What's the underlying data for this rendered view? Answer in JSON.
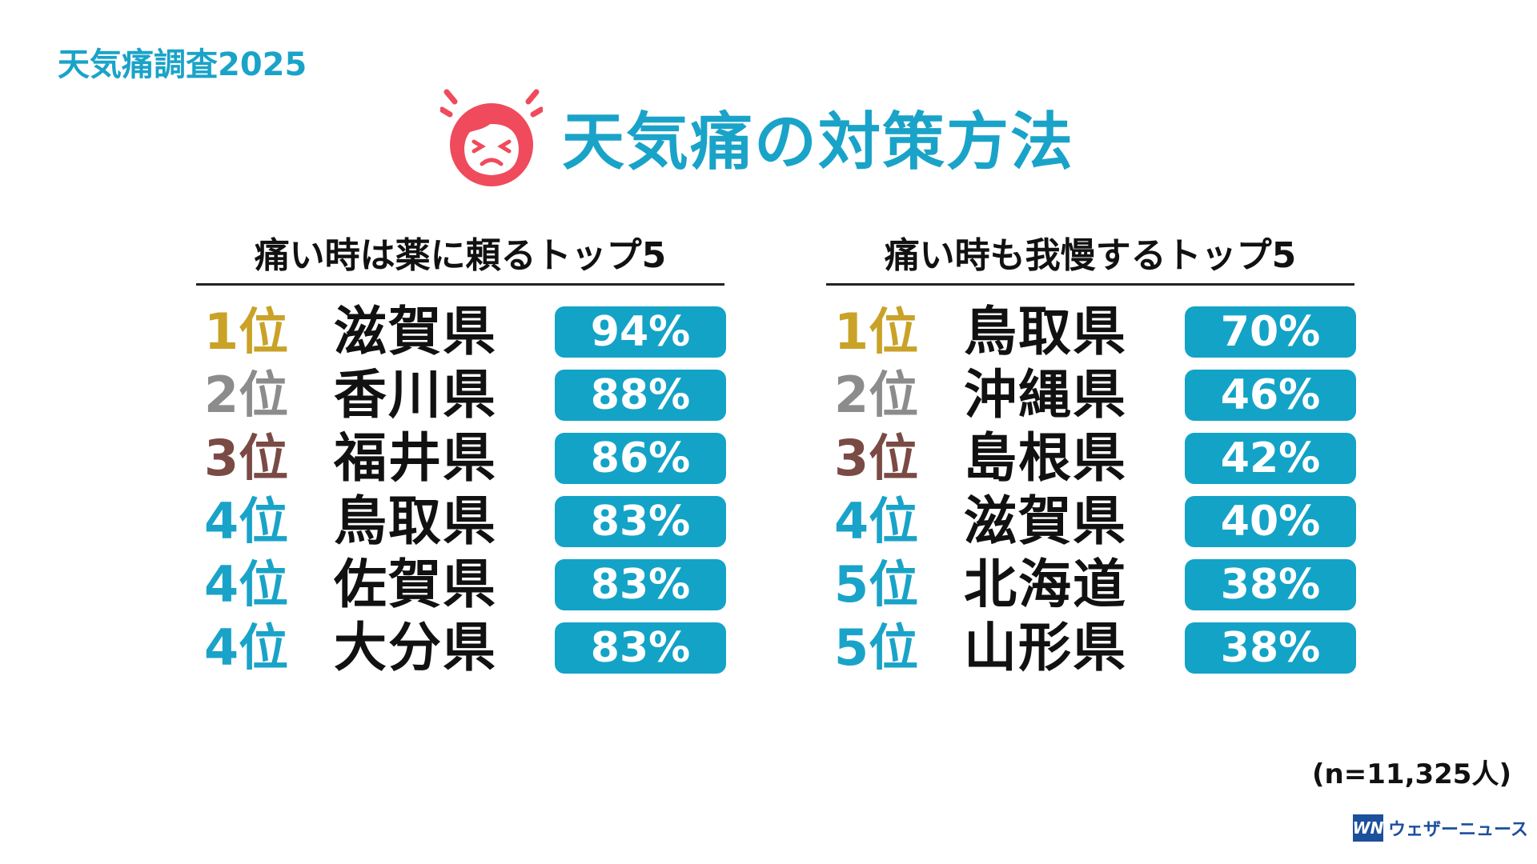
{
  "header": {
    "survey_tag": "天気痛調査2025",
    "title": "天気痛の対策方法",
    "icon": "headache-face-icon"
  },
  "colors": {
    "accent": "#1aa3c8",
    "bar": "#13a3c6",
    "rank1": "#c9a227",
    "rank2": "#8c8c8c",
    "rank3": "#7a4a44",
    "rank_other": "#1aa3c8",
    "icon_red": "#ef4b5c"
  },
  "chart_data": [
    {
      "type": "table",
      "title": "痛い時は薬に頼るトップ5",
      "rows": [
        {
          "rank": "1位",
          "prefecture": "滋賀県",
          "value": "94%"
        },
        {
          "rank": "2位",
          "prefecture": "香川県",
          "value": "88%"
        },
        {
          "rank": "3位",
          "prefecture": "福井県",
          "value": "86%"
        },
        {
          "rank": "4位",
          "prefecture": "鳥取県",
          "value": "83%"
        },
        {
          "rank": "4位",
          "prefecture": "佐賀県",
          "value": "83%"
        },
        {
          "rank": "4位",
          "prefecture": "大分県",
          "value": "83%"
        }
      ]
    },
    {
      "type": "table",
      "title": "痛い時も我慢するトップ5",
      "rows": [
        {
          "rank": "1位",
          "prefecture": "鳥取県",
          "value": "70%"
        },
        {
          "rank": "2位",
          "prefecture": "沖縄県",
          "value": "46%"
        },
        {
          "rank": "3位",
          "prefecture": "島根県",
          "value": "42%"
        },
        {
          "rank": "4位",
          "prefecture": "滋賀県",
          "value": "40%"
        },
        {
          "rank": "5位",
          "prefecture": "北海道",
          "value": "38%"
        },
        {
          "rank": "5位",
          "prefecture": "山形県",
          "value": "38%"
        }
      ]
    }
  ],
  "footer": {
    "sample_size": "(n=11,325人)",
    "logo_mark": "WN",
    "logo_text": "ウェザーニュース"
  }
}
